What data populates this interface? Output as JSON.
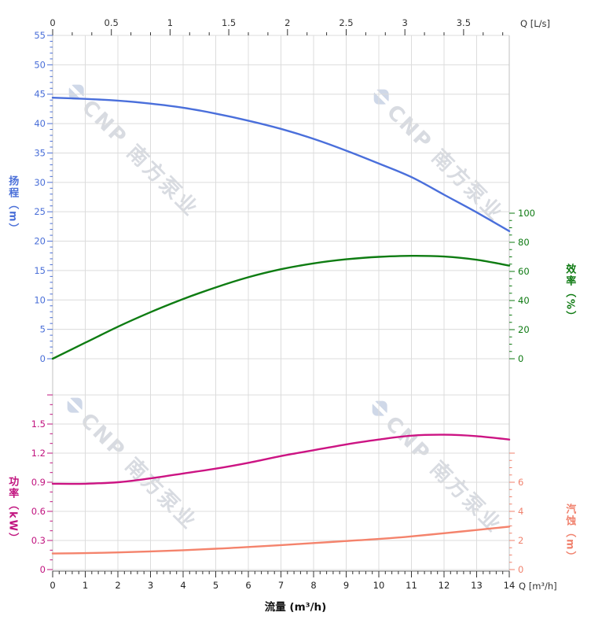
{
  "watermark": {
    "brand": "CNP",
    "company": "南方泵业"
  },
  "chart_data": {
    "type": "line",
    "grid": true,
    "background": "#ffffff",
    "axes": {
      "top": {
        "label": "Q [L/s]",
        "tick_labels": [
          "0",
          "0.5",
          "1",
          "1.5",
          "2",
          "2.5",
          "3",
          "3.5"
        ],
        "tick_values": [
          0,
          0.5,
          1,
          1.5,
          2,
          2.5,
          3,
          3.5
        ],
        "max": 3.889,
        "color": "#333333"
      },
      "bottom": {
        "label": "Q [m³/h]",
        "axis_title": "流量 (m³/h)",
        "tick_labels": [
          "0",
          "1",
          "2",
          "3",
          "4",
          "5",
          "6",
          "7",
          "8",
          "9",
          "10",
          "11",
          "12",
          "13",
          "14"
        ],
        "tick_values": [
          0,
          1,
          2,
          3,
          4,
          5,
          6,
          7,
          8,
          9,
          10,
          11,
          12,
          13,
          14
        ],
        "max": 14,
        "color": "#222222"
      },
      "head": {
        "title": "扬程（m）",
        "color": "#4a6fd8",
        "tick_labels": [
          "0",
          "5",
          "10",
          "15",
          "20",
          "25",
          "30",
          "35",
          "40",
          "45",
          "50",
          "55"
        ],
        "tick_values": [
          0,
          5,
          10,
          15,
          20,
          25,
          30,
          35,
          40,
          45,
          50,
          55
        ],
        "range": [
          0,
          55
        ]
      },
      "efficiency": {
        "title": "效率（%）",
        "color": "#0e7a12",
        "tick_labels": [
          "0",
          "20",
          "40",
          "60",
          "80",
          "100"
        ],
        "tick_values": [
          0,
          20,
          40,
          60,
          80,
          100
        ],
        "range": [
          0,
          100
        ]
      },
      "power": {
        "title": "功率（kW）",
        "color": "#c1147f",
        "tick_labels": [
          "0",
          "0.3",
          "0.6",
          "0.9",
          "1.2",
          "1.5"
        ],
        "tick_values": [
          0,
          0.3,
          0.6,
          0.9,
          1.2,
          1.5
        ],
        "range": [
          0,
          1.8
        ]
      },
      "npsh": {
        "title": "汽蚀（m）",
        "color": "#f0826e",
        "tick_labels": [
          "0",
          "2",
          "4",
          "6"
        ],
        "tick_values": [
          0,
          2,
          4,
          6
        ],
        "range": [
          0,
          8
        ]
      }
    },
    "series": [
      {
        "name": "head",
        "axis": "head",
        "color": "#4a6fdb",
        "x": [
          0,
          1,
          2,
          3,
          4,
          5,
          6,
          7,
          8,
          9,
          10,
          11,
          12,
          13,
          14
        ],
        "y": [
          44.4,
          44.2,
          43.9,
          43.4,
          42.7,
          41.7,
          40.5,
          39.1,
          37.4,
          35.4,
          33.2,
          30.9,
          27.9,
          24.9,
          21.7
        ]
      },
      {
        "name": "efficiency",
        "axis": "efficiency",
        "color": "#0e7c12",
        "x": [
          0,
          1,
          2,
          3,
          4,
          5,
          6,
          7,
          8,
          9,
          10,
          11,
          12,
          13,
          14
        ],
        "y": [
          0,
          11,
          22,
          32,
          41,
          49,
          56,
          61.5,
          65.5,
          68.3,
          70,
          70.7,
          70.2,
          68,
          64
        ]
      },
      {
        "name": "power",
        "axis": "power",
        "color": "#cc1483",
        "x": [
          0,
          1,
          2,
          3,
          4,
          5,
          6,
          7,
          8,
          9,
          10,
          11,
          12,
          13,
          14
        ],
        "y": [
          0.885,
          0.885,
          0.9,
          0.94,
          0.99,
          1.04,
          1.1,
          1.17,
          1.23,
          1.29,
          1.34,
          1.38,
          1.39,
          1.375,
          1.34
        ]
      },
      {
        "name": "npsh",
        "axis": "npsh",
        "color": "#f4836c",
        "x": [
          0,
          1,
          2,
          3,
          4,
          5,
          6,
          7,
          8,
          9,
          10,
          11,
          12,
          13,
          14
        ],
        "y": [
          1.1,
          1.13,
          1.18,
          1.25,
          1.33,
          1.43,
          1.55,
          1.68,
          1.82,
          1.96,
          2.1,
          2.28,
          2.5,
          2.72,
          2.95
        ]
      }
    ]
  }
}
